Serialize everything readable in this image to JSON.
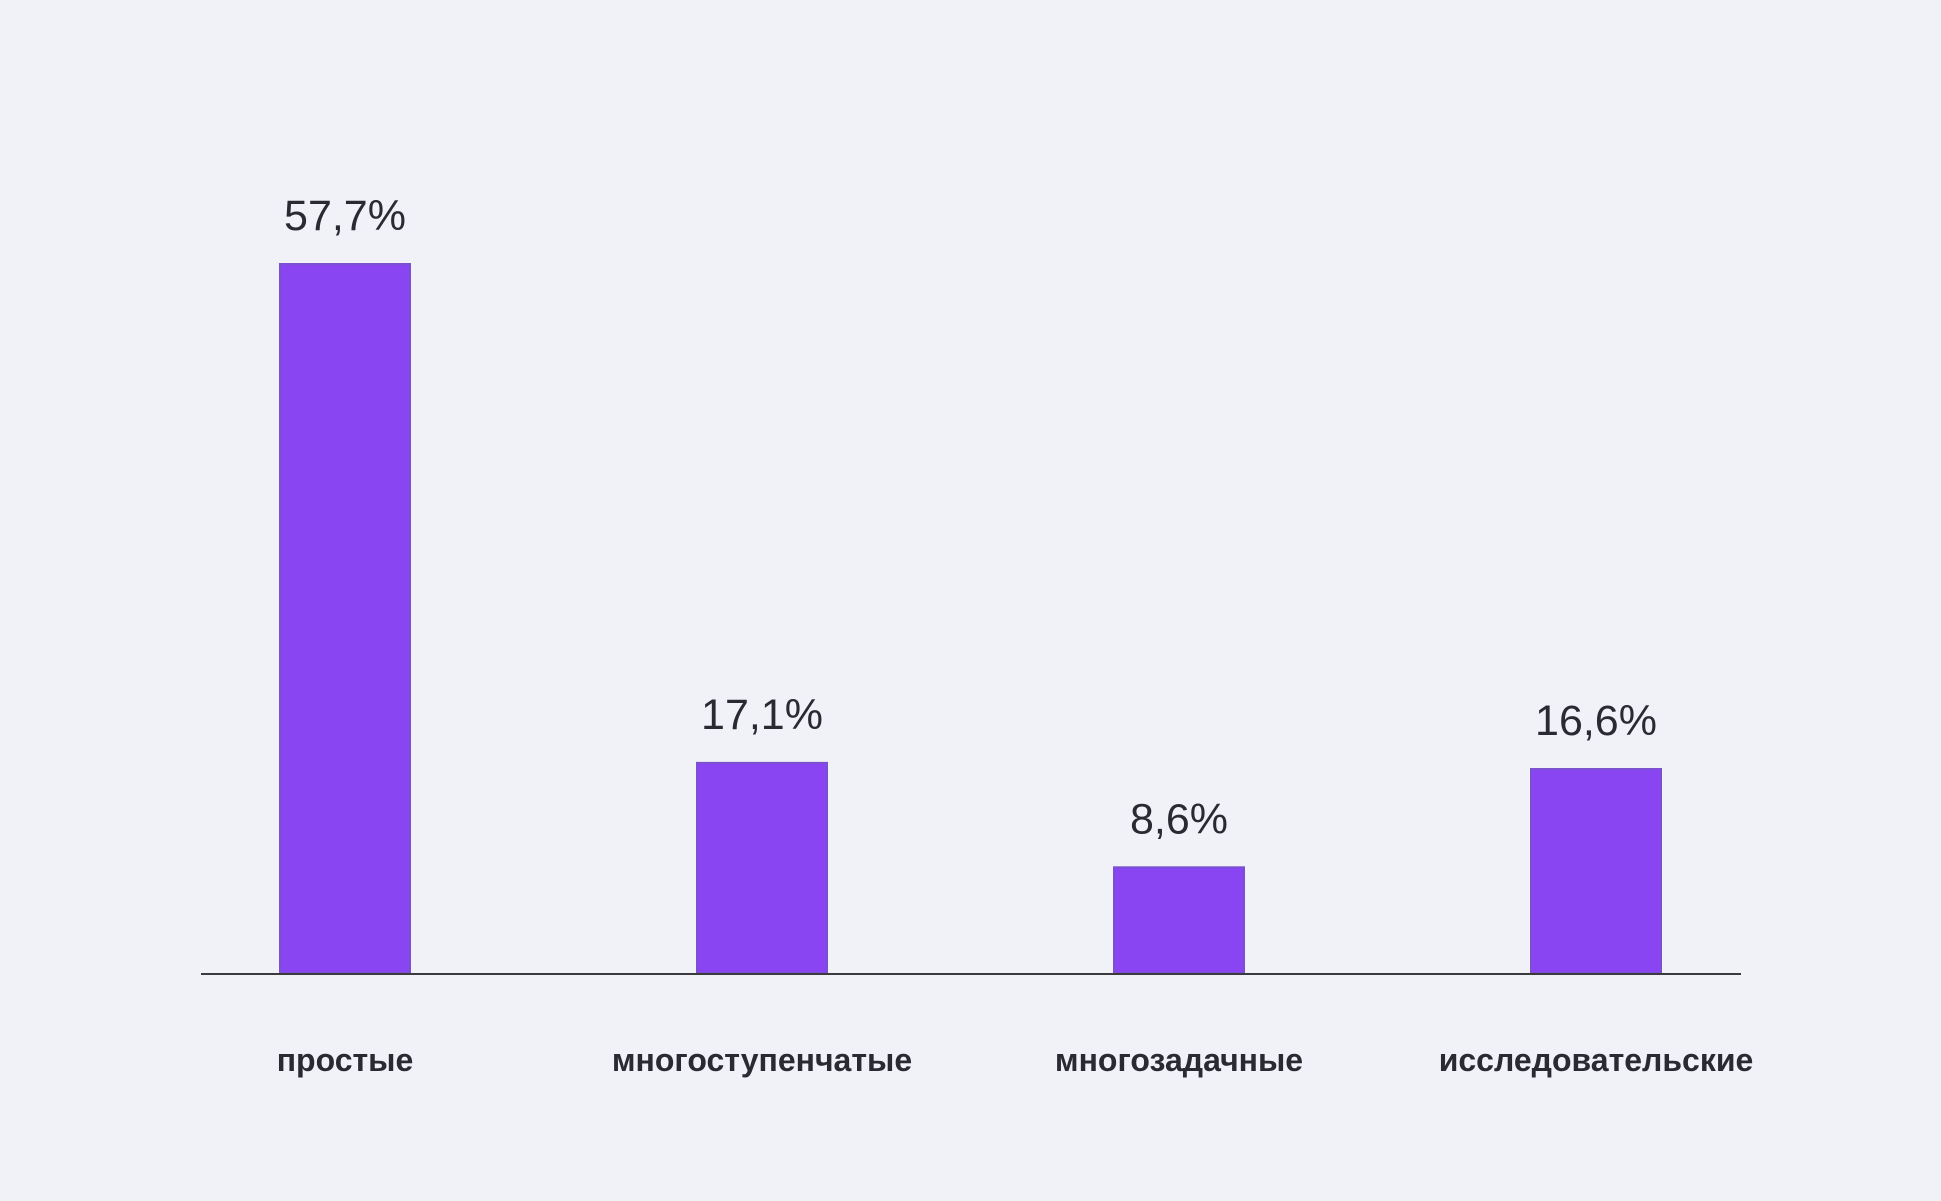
{
  "chart_data": {
    "type": "bar",
    "title": "",
    "xlabel": "",
    "ylabel": "",
    "categories": [
      "простые",
      "многоступенчатые",
      "многозадачные",
      "исследовательские"
    ],
    "values": [
      57.7,
      17.1,
      8.6,
      16.6
    ],
    "value_labels": [
      "57,7%",
      "17,1%",
      "8,6%",
      "16,6%"
    ],
    "unit": "%",
    "ylim": [
      0,
      57.7
    ],
    "grid": false,
    "legend": "none",
    "colors": {
      "bar": "#8a45f3",
      "bar_border": "#7a4fd0",
      "axis": "#3a3a3f",
      "text": "#2a2a33",
      "background": "#f1f2f7"
    }
  }
}
